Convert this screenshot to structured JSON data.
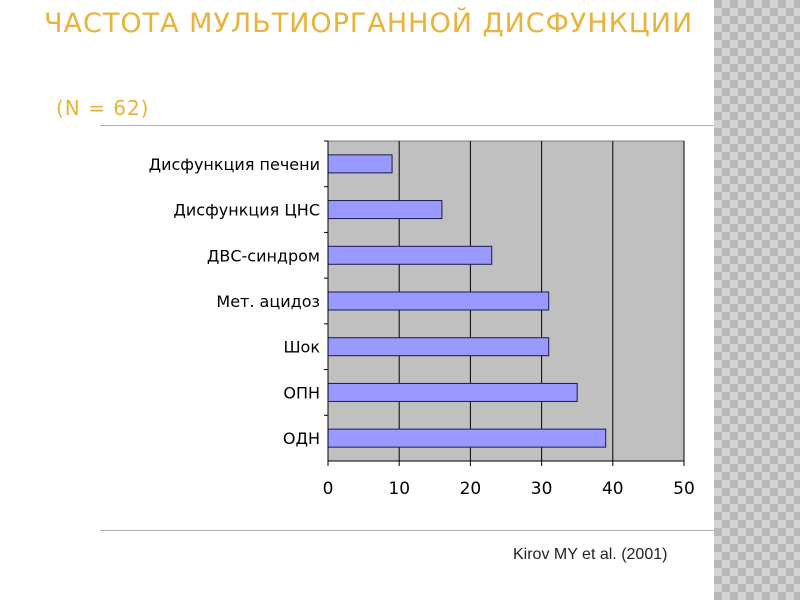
{
  "slide": {
    "title": "ЧАСТОТА МУЛЬТИОРГАННОЙ ДИСФУНКЦИИ",
    "subtitle": "(N = 62)",
    "citation": "Kirov MY et al. (2001)"
  },
  "colors": {
    "title": "#e8b33a",
    "bar_fill": "#9999ff",
    "bar_stroke": "#1a1a4d",
    "plot_bg": "#c0c0c0"
  },
  "chart_data": {
    "type": "bar",
    "orientation": "horizontal",
    "categories": [
      "Дисфункция печени",
      "Дисфункция ЦНС",
      "ДВС-синдром",
      "Мет. ацидоз",
      "Шок",
      "ОПН",
      "ОДН"
    ],
    "values": [
      9,
      16,
      23,
      31,
      31,
      35,
      39
    ],
    "xlim": [
      0,
      50
    ],
    "xticks": [
      0,
      10,
      20,
      30,
      40,
      50
    ],
    "grid": true,
    "legend": "none"
  }
}
